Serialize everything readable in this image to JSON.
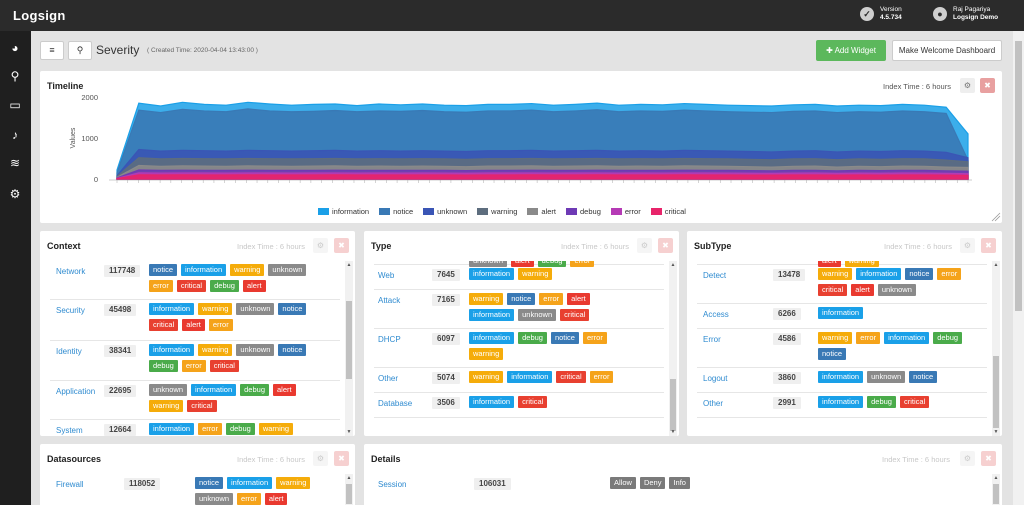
{
  "brand": "Logsign",
  "version": {
    "label": "Version",
    "value": "4.5.734"
  },
  "user": {
    "name": "Raj Pagariya",
    "org": "Logsign Demo"
  },
  "page": {
    "title": "Severity",
    "subtitle": "( Created Time: 2020-04-04 13:43:00 )"
  },
  "actions": {
    "add_widget": "Add Widget",
    "make_welcome": "Make Welcome Dashboard"
  },
  "colors": {
    "information": "#1aa0e8",
    "notice": "#3979b5",
    "unknown": "#8a8a8a",
    "warning": "#f5ac0a",
    "alert": "#e9392f",
    "debug": "#4aab4a",
    "error": "#f5a31a",
    "critical": "#e84030",
    "allow": "#7a7a7a"
  },
  "timeline": {
    "title": "Timeline",
    "index_time": "Index Time : 6 hours",
    "chart_data": {
      "type": "area",
      "ylabel": "Values",
      "ylim": [
        0,
        2000
      ],
      "yticks": [
        "0",
        "1000",
        "2000"
      ],
      "series": [
        {
          "name": "information",
          "color": "#1aa0e8",
          "values": [
            220,
            1850,
            1780,
            1870,
            1820,
            1800,
            1870,
            1830,
            1800,
            1820,
            1830,
            1790,
            1830,
            1810,
            1830,
            1800,
            1790,
            1820,
            1820,
            1840,
            1800,
            1820,
            1850,
            1800,
            1820,
            1810,
            1840,
            1820,
            1800,
            1790,
            1780,
            1810,
            1820,
            1780,
            1800,
            1790,
            1820,
            1800,
            1750,
            1100
          ]
        },
        {
          "name": "notice",
          "color": "#3979b5",
          "values": [
            150,
            1680,
            1620,
            1700,
            1660,
            1640,
            1710,
            1660,
            1640,
            1650,
            1670,
            1640,
            1660,
            1650,
            1670,
            1640,
            1630,
            1660,
            1660,
            1680,
            1640,
            1660,
            1690,
            1640,
            1660,
            1650,
            1680,
            1660,
            1640,
            1630,
            1620,
            1650,
            1660,
            1620,
            1640,
            1630,
            1660,
            1640,
            1600,
            460
          ]
        },
        {
          "name": "unknown",
          "color": "#3a55b5",
          "values": [
            80,
            720,
            680,
            700,
            690,
            680,
            700,
            690,
            680,
            690,
            700,
            680,
            690,
            680,
            690,
            680,
            670,
            690,
            690,
            700,
            680,
            690,
            700,
            680,
            690,
            680,
            700,
            690,
            680,
            670,
            660,
            680,
            690,
            660,
            680,
            670,
            690,
            680,
            650,
            520
          ]
        },
        {
          "name": "warning",
          "color": "#5d6d7e",
          "values": [
            60,
            520,
            490,
            500,
            495,
            490,
            500,
            495,
            490,
            495,
            500,
            490,
            495,
            490,
            495,
            490,
            480,
            495,
            495,
            500,
            490,
            495,
            500,
            490,
            495,
            490,
            500,
            495,
            490,
            480,
            470,
            490,
            495,
            470,
            490,
            480,
            495,
            490,
            460,
            420
          ]
        },
        {
          "name": "alert",
          "color": "#8a8a8a",
          "values": [
            40,
            330,
            310,
            320,
            315,
            310,
            320,
            315,
            310,
            315,
            320,
            310,
            315,
            310,
            315,
            310,
            300,
            315,
            315,
            320,
            310,
            315,
            320,
            310,
            315,
            310,
            320,
            315,
            310,
            300,
            290,
            310,
            315,
            290,
            310,
            300,
            315,
            310,
            290,
            280
          ]
        },
        {
          "name": "debug",
          "color": "#6e3ab5",
          "values": [
            25,
            220,
            210,
            215,
            212,
            210,
            215,
            212,
            210,
            212,
            215,
            210,
            212,
            210,
            212,
            210,
            205,
            212,
            212,
            215,
            210,
            212,
            215,
            210,
            212,
            210,
            215,
            212,
            210,
            205,
            200,
            210,
            212,
            200,
            210,
            205,
            212,
            210,
            200,
            190
          ]
        },
        {
          "name": "error",
          "color": "#b53ab5",
          "values": [
            15,
            150,
            145,
            148,
            146,
            145,
            148,
            146,
            145,
            146,
            148,
            145,
            146,
            145,
            146,
            145,
            140,
            146,
            146,
            148,
            145,
            146,
            148,
            145,
            146,
            145,
            148,
            146,
            145,
            140,
            138,
            145,
            146,
            138,
            145,
            140,
            146,
            145,
            138,
            130
          ]
        },
        {
          "name": "critical",
          "color": "#e8246a",
          "values": [
            10,
            100,
            98,
            100,
            99,
            98,
            100,
            99,
            98,
            99,
            100,
            98,
            99,
            98,
            99,
            98,
            95,
            99,
            99,
            100,
            98,
            99,
            100,
            98,
            99,
            98,
            100,
            99,
            98,
            95,
            94,
            98,
            99,
            94,
            98,
            95,
            99,
            98,
            94,
            90
          ]
        }
      ]
    }
  },
  "context": {
    "title": "Context",
    "index_time": "Index Time : 6 hours",
    "rows": [
      {
        "name": "Network",
        "count": "117748",
        "tags": [
          "notice",
          "information",
          "warning",
          "unknown",
          "error",
          "critical",
          "debug",
          "alert"
        ]
      },
      {
        "name": "Security",
        "count": "45498",
        "tags": [
          "information",
          "warning",
          "unknown",
          "notice",
          "critical",
          "alert",
          "error"
        ]
      },
      {
        "name": "Identity",
        "count": "38341",
        "tags": [
          "information",
          "warning",
          "unknown",
          "notice",
          "debug",
          "error",
          "critical"
        ]
      },
      {
        "name": "Application",
        "count": "22695",
        "tags": [
          "unknown",
          "information",
          "debug",
          "alert",
          "warning",
          "critical"
        ]
      },
      {
        "name": "System",
        "count": "12664",
        "tags": [
          "information",
          "error",
          "debug",
          "warning"
        ]
      }
    ]
  },
  "type": {
    "title": "Type",
    "index_time": "Index Time : 6 hours",
    "rows": [
      {
        "name": "",
        "count": "",
        "tags": [
          "unknown",
          "alert",
          "debug",
          "error"
        ]
      },
      {
        "name": "Web",
        "count": "7645",
        "tags": [
          "information",
          "warning"
        ]
      },
      {
        "name": "Attack",
        "count": "7165",
        "tags": [
          "warning",
          "notice",
          "error",
          "alert",
          "information",
          "unknown",
          "critical"
        ]
      },
      {
        "name": "DHCP",
        "count": "6097",
        "tags": [
          "information",
          "debug",
          "notice",
          "error",
          "warning"
        ]
      },
      {
        "name": "Other",
        "count": "5074",
        "tags": [
          "warning",
          "information",
          "critical",
          "error"
        ]
      },
      {
        "name": "Database",
        "count": "3506",
        "tags": [
          "information",
          "critical"
        ]
      }
    ]
  },
  "subtype": {
    "title": "SubType",
    "index_time": "Index Time : 6 hours",
    "rows": [
      {
        "name": "",
        "count": "",
        "tags": [
          "alert",
          "warning"
        ]
      },
      {
        "name": "Detect",
        "count": "13478",
        "tags": [
          "warning",
          "information",
          "notice",
          "error",
          "critical",
          "alert",
          "unknown"
        ]
      },
      {
        "name": "Access",
        "count": "6266",
        "tags": [
          "information"
        ]
      },
      {
        "name": "Error",
        "count": "4586",
        "tags": [
          "warning",
          "error",
          "information",
          "debug",
          "notice"
        ]
      },
      {
        "name": "Logout",
        "count": "3860",
        "tags": [
          "information",
          "unknown",
          "notice"
        ]
      },
      {
        "name": "Other",
        "count": "2991",
        "tags": [
          "information",
          "debug",
          "critical"
        ]
      }
    ]
  },
  "datasources": {
    "title": "Datasources",
    "index_time": "Index Time : 6 hours",
    "rows": [
      {
        "name": "Firewall",
        "count": "118052",
        "tags": [
          "notice",
          "information",
          "warning",
          "unknown",
          "error",
          "alert"
        ]
      }
    ]
  },
  "details": {
    "title": "Details",
    "index_time": "Index Time : 6 hours",
    "rows": [
      {
        "name": "Session",
        "count": "106031",
        "tags": [
          "Allow",
          "Deny",
          "Info"
        ]
      }
    ]
  }
}
